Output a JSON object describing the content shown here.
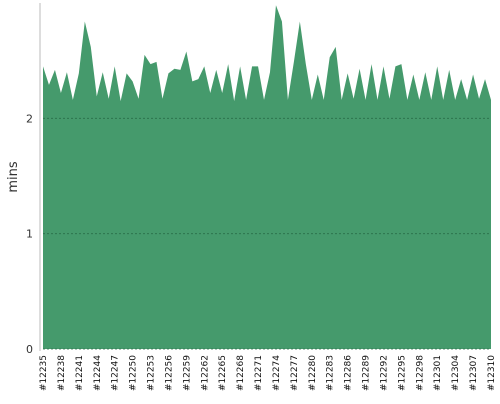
{
  "chart_data": {
    "type": "area",
    "y_label": "mins",
    "color": "#459a6c",
    "categories": [
      "#12235",
      null,
      null,
      "#12238",
      null,
      null,
      "#12241",
      null,
      null,
      "#12244",
      null,
      null,
      "#12247",
      null,
      null,
      "#12250",
      null,
      null,
      "#12253",
      null,
      null,
      "#12256",
      null,
      null,
      "#12259",
      null,
      null,
      "#12262",
      null,
      null,
      "#12265",
      null,
      null,
      "#12268",
      null,
      null,
      "#12271",
      null,
      null,
      "#12274",
      null,
      null,
      "#12277",
      null,
      null,
      "#12280",
      null,
      null,
      "#12283",
      null,
      null,
      "#12286",
      null,
      null,
      "#12289",
      null,
      null,
      "#12292",
      null,
      null,
      "#12295",
      null,
      null,
      "#12298",
      null,
      null,
      "#12301",
      null,
      null,
      "#12304",
      null,
      null,
      "#12307",
      null,
      null,
      "#12310"
    ],
    "values": [
      2.45,
      2.29,
      2.42,
      2.22,
      2.4,
      2.16,
      2.39,
      2.84,
      2.62,
      2.19,
      2.4,
      2.17,
      2.45,
      2.15,
      2.39,
      2.32,
      2.17,
      2.55,
      2.47,
      2.49,
      2.17,
      2.39,
      2.43,
      2.42,
      2.58,
      2.32,
      2.34,
      2.45,
      2.22,
      2.42,
      2.22,
      2.47,
      2.15,
      2.45,
      2.16,
      2.45,
      2.45,
      2.16,
      2.4,
      2.98,
      2.84,
      2.16,
      2.49,
      2.84,
      2.47,
      2.16,
      2.38,
      2.16,
      2.53,
      2.62,
      2.16,
      2.39,
      2.17,
      2.43,
      2.16,
      2.47,
      2.16,
      2.45,
      2.17,
      2.45,
      2.47,
      2.16,
      2.38,
      2.16,
      2.4,
      2.16,
      2.45,
      2.16,
      2.42,
      2.16,
      2.34,
      2.16,
      2.38,
      2.17,
      2.34,
      2.16
    ],
    "ylim": [
      0,
      3
    ],
    "yticks": [
      0,
      1,
      2
    ],
    "grid": true
  }
}
